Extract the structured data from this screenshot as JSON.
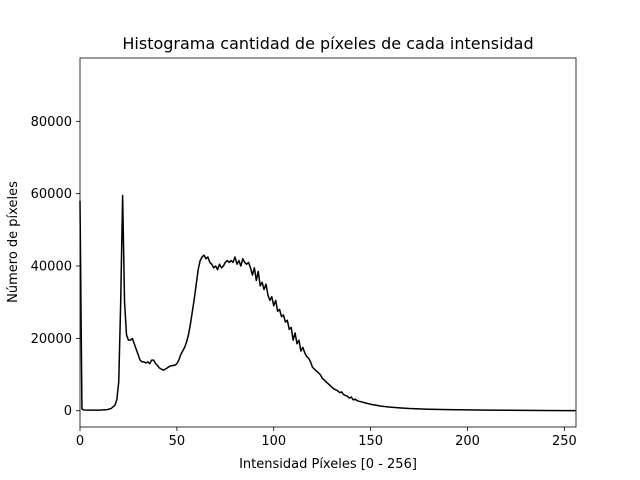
{
  "chart_data": {
    "type": "line",
    "title": "Histograma cantidad de píxeles de cada intensidad",
    "xlabel": "Intensidad Píxeles [0 - 256]",
    "ylabel": "Número de píxeles",
    "xlim": [
      0,
      256
    ],
    "ylim": [
      -4500,
      97500
    ],
    "x_ticks": [
      0,
      50,
      100,
      150,
      200,
      250
    ],
    "y_ticks": [
      0,
      20000,
      40000,
      60000,
      80000
    ],
    "grid": false,
    "series_color": "#000000",
    "series": [
      {
        "values": [
          [
            0,
            58000
          ],
          [
            1,
            500
          ],
          [
            2,
            200
          ],
          [
            5,
            150
          ],
          [
            10,
            150
          ],
          [
            14,
            300
          ],
          [
            16,
            600
          ],
          [
            18,
            1500
          ],
          [
            19,
            3000
          ],
          [
            20,
            8000
          ],
          [
            21,
            30000
          ],
          [
            22,
            59500
          ],
          [
            23,
            30000
          ],
          [
            24,
            21000
          ],
          [
            25,
            19500
          ],
          [
            26,
            19500
          ],
          [
            27,
            20000
          ],
          [
            28,
            18500
          ],
          [
            29,
            17000
          ],
          [
            30,
            15500
          ],
          [
            31,
            14000
          ],
          [
            32,
            13500
          ],
          [
            33,
            13500
          ],
          [
            34,
            13200
          ],
          [
            35,
            13500
          ],
          [
            36,
            13000
          ],
          [
            37,
            14000
          ],
          [
            38,
            14000
          ],
          [
            39,
            13000
          ],
          [
            40,
            12500
          ],
          [
            41,
            11800
          ],
          [
            42,
            11500
          ],
          [
            43,
            11200
          ],
          [
            44,
            11500
          ],
          [
            45,
            11800
          ],
          [
            46,
            12200
          ],
          [
            47,
            12400
          ],
          [
            48,
            12500
          ],
          [
            49,
            12600
          ],
          [
            50,
            13000
          ],
          [
            51,
            14000
          ],
          [
            52,
            15500
          ],
          [
            53,
            16500
          ],
          [
            54,
            17500
          ],
          [
            55,
            19000
          ],
          [
            56,
            21000
          ],
          [
            57,
            24000
          ],
          [
            58,
            27500
          ],
          [
            59,
            31000
          ],
          [
            60,
            35000
          ],
          [
            61,
            39000
          ],
          [
            62,
            41500
          ],
          [
            63,
            42500
          ],
          [
            64,
            43000
          ],
          [
            65,
            42000
          ],
          [
            66,
            42500
          ],
          [
            67,
            41000
          ],
          [
            68,
            40500
          ],
          [
            69,
            39500
          ],
          [
            70,
            40000
          ],
          [
            71,
            39000
          ],
          [
            72,
            40500
          ],
          [
            73,
            39500
          ],
          [
            74,
            40000
          ],
          [
            75,
            41000
          ],
          [
            76,
            41500
          ],
          [
            77,
            41000
          ],
          [
            78,
            41500
          ],
          [
            79,
            41000
          ],
          [
            80,
            42500
          ],
          [
            81,
            40500
          ],
          [
            82,
            41500
          ],
          [
            83,
            40000
          ],
          [
            84,
            42000
          ],
          [
            85,
            41000
          ],
          [
            86,
            40500
          ],
          [
            87,
            41000
          ],
          [
            88,
            39500
          ],
          [
            89,
            37500
          ],
          [
            90,
            39500
          ],
          [
            91,
            36000
          ],
          [
            92,
            38500
          ],
          [
            93,
            34500
          ],
          [
            94,
            35500
          ],
          [
            95,
            33500
          ],
          [
            96,
            35000
          ],
          [
            97,
            32000
          ],
          [
            98,
            30500
          ],
          [
            99,
            31500
          ],
          [
            100,
            29000
          ],
          [
            101,
            30500
          ],
          [
            102,
            27500
          ],
          [
            103,
            28000
          ],
          [
            104,
            26000
          ],
          [
            105,
            26500
          ],
          [
            106,
            24500
          ],
          [
            107,
            25000
          ],
          [
            108,
            22500
          ],
          [
            109,
            23000
          ],
          [
            110,
            19500
          ],
          [
            111,
            21500
          ],
          [
            112,
            18500
          ],
          [
            113,
            19500
          ],
          [
            114,
            16500
          ],
          [
            115,
            17500
          ],
          [
            116,
            16000
          ],
          [
            117,
            15000
          ],
          [
            118,
            14500
          ],
          [
            119,
            13500
          ],
          [
            120,
            12000
          ],
          [
            121,
            11500
          ],
          [
            122,
            11000
          ],
          [
            123,
            10500
          ],
          [
            124,
            10000
          ],
          [
            125,
            9000
          ],
          [
            126,
            8500
          ],
          [
            127,
            8000
          ],
          [
            128,
            7500
          ],
          [
            129,
            7000
          ],
          [
            130,
            6500
          ],
          [
            131,
            6000
          ],
          [
            132,
            5800
          ],
          [
            133,
            5500
          ],
          [
            134,
            5000
          ],
          [
            135,
            5200
          ],
          [
            136,
            4500
          ],
          [
            137,
            4200
          ],
          [
            138,
            4000
          ],
          [
            139,
            3500
          ],
          [
            140,
            3800
          ],
          [
            141,
            3000
          ],
          [
            142,
            3200
          ],
          [
            143,
            2800
          ],
          [
            144,
            2600
          ],
          [
            145,
            2500
          ],
          [
            147,
            2200
          ],
          [
            150,
            1800
          ],
          [
            155,
            1300
          ],
          [
            160,
            1000
          ],
          [
            165,
            800
          ],
          [
            170,
            600
          ],
          [
            175,
            500
          ],
          [
            180,
            420
          ],
          [
            190,
            300
          ],
          [
            200,
            230
          ],
          [
            210,
            170
          ],
          [
            220,
            120
          ],
          [
            230,
            80
          ],
          [
            240,
            50
          ],
          [
            250,
            30
          ],
          [
            256,
            20
          ]
        ]
      }
    ]
  }
}
